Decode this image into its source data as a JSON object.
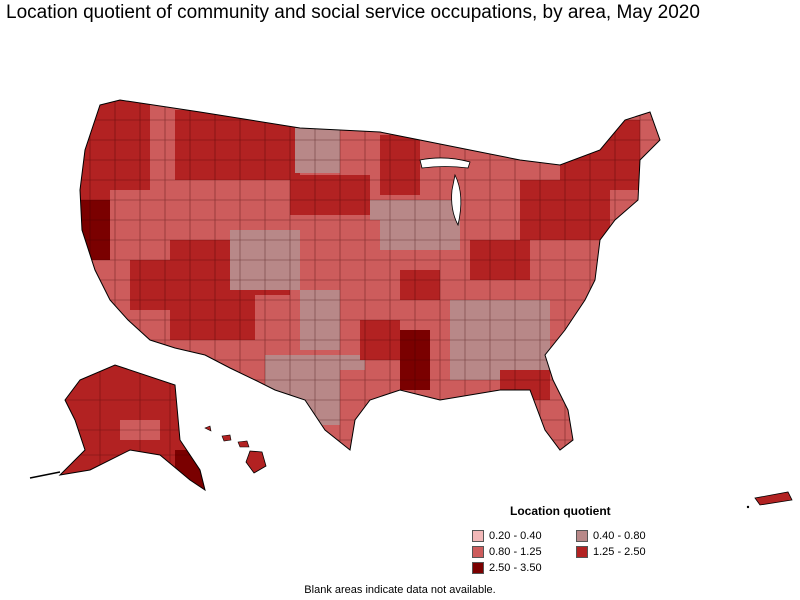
{
  "title": "Location quotient of community and social service occupations, by area, May 2020",
  "legend": {
    "title": "Location quotient",
    "items": [
      {
        "label": "0.20 - 0.40",
        "color": "#f2b8b8"
      },
      {
        "label": "0.40 - 0.80",
        "color": "#b88888"
      },
      {
        "label": "0.80 - 1.25",
        "color": "#cd5c5c"
      },
      {
        "label": "1.25 - 2.50",
        "color": "#b22222"
      },
      {
        "label": "2.50 - 3.50",
        "color": "#7a0000"
      }
    ]
  },
  "footnote": "Blank areas indicate data not available."
}
